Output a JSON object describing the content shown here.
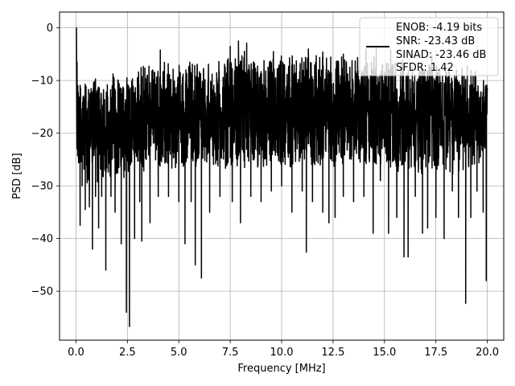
{
  "chart_data": {
    "type": "line",
    "title": "",
    "xlabel": "Frequency [MHz]",
    "ylabel": "PSD [dB]",
    "xlim": [
      -0.8,
      20.8
    ],
    "ylim": [
      -59.3,
      3.0
    ],
    "xticks": [
      0.0,
      2.5,
      5.0,
      7.5,
      10.0,
      12.5,
      15.0,
      17.5,
      20.0
    ],
    "xtick_labels": [
      "0.0",
      "2.5",
      "5.0",
      "7.5",
      "10.0",
      "12.5",
      "15.0",
      "17.5",
      "20.0"
    ],
    "yticks": [
      0,
      -10,
      -20,
      -30,
      -40,
      -50
    ],
    "ytick_labels": [
      "0",
      "−10",
      "−20",
      "−30",
      "−40",
      "−50"
    ],
    "grid": true,
    "legend_position": "top-right",
    "legend": {
      "lines": [
        "ENOB: -4.19 bits",
        "SNR: -23.43 dB",
        "SINAD: -23.46 dB",
        "SFDR: 1.42"
      ],
      "color": "#000000"
    },
    "series": [
      {
        "color": "#000000",
        "band_top": [
          [
            0.05,
            -9.5
          ],
          [
            0.5,
            -11
          ],
          [
            1.0,
            -10
          ],
          [
            1.5,
            -10
          ],
          [
            2.0,
            -9
          ],
          [
            2.5,
            -8.5
          ],
          [
            3.0,
            -8
          ],
          [
            4.0,
            -7.5
          ],
          [
            5.0,
            -7
          ],
          [
            6.0,
            -6.5
          ],
          [
            7.0,
            -6
          ],
          [
            7.5,
            -5.5
          ],
          [
            8.0,
            -4.5
          ],
          [
            9.0,
            -5.5
          ],
          [
            10.0,
            -6
          ],
          [
            11.0,
            -5.5
          ],
          [
            12.0,
            -5.5
          ],
          [
            13.0,
            -5.5
          ],
          [
            14.0,
            -6
          ],
          [
            15.0,
            -6
          ],
          [
            16.0,
            -7
          ],
          [
            17.0,
            -7
          ],
          [
            18.0,
            -8
          ],
          [
            19.0,
            -8
          ],
          [
            20.0,
            -9.5
          ]
        ],
        "band_bottom": [
          [
            0.05,
            -26
          ],
          [
            0.5,
            -29
          ],
          [
            1.0,
            -29
          ],
          [
            2.0,
            -28
          ],
          [
            3.0,
            -27
          ],
          [
            4.0,
            -26
          ],
          [
            5.0,
            -26
          ],
          [
            6.0,
            -26
          ],
          [
            7.0,
            -26
          ],
          [
            8.0,
            -26
          ],
          [
            9.0,
            -26
          ],
          [
            10.0,
            -26
          ],
          [
            11.0,
            -26
          ],
          [
            12.0,
            -26
          ],
          [
            13.0,
            -26
          ],
          [
            14.0,
            -26
          ],
          [
            15.0,
            -26
          ],
          [
            16.0,
            -27
          ],
          [
            17.0,
            -27
          ],
          [
            18.0,
            -27
          ],
          [
            19.0,
            -27
          ],
          [
            20.0,
            -24
          ]
        ],
        "spikes": [
          [
            0.02,
            -0.2
          ],
          [
            0.05,
            -6.5
          ],
          [
            0.1,
            -23
          ],
          [
            0.2,
            -37.5
          ],
          [
            0.3,
            -30
          ],
          [
            0.45,
            -34.5
          ],
          [
            0.65,
            -34
          ],
          [
            0.8,
            -42
          ],
          [
            0.95,
            -32
          ],
          [
            1.1,
            -38
          ],
          [
            1.25,
            -32
          ],
          [
            1.45,
            -46
          ],
          [
            1.7,
            -32
          ],
          [
            1.9,
            -35
          ],
          [
            2.2,
            -41
          ],
          [
            2.45,
            -54
          ],
          [
            2.6,
            -56.7
          ],
          [
            2.85,
            -40
          ],
          [
            3.1,
            -33
          ],
          [
            3.2,
            -40.5
          ],
          [
            3.6,
            -37
          ],
          [
            4.0,
            -32
          ],
          [
            4.5,
            -32
          ],
          [
            5.0,
            -33
          ],
          [
            5.3,
            -41
          ],
          [
            5.6,
            -33
          ],
          [
            5.8,
            -45
          ],
          [
            6.1,
            -47.5
          ],
          [
            6.5,
            -35
          ],
          [
            7.0,
            -32
          ],
          [
            7.6,
            -33
          ],
          [
            8.0,
            -37
          ],
          [
            8.5,
            -32
          ],
          [
            9.0,
            -33
          ],
          [
            9.5,
            -31
          ],
          [
            10.0,
            -30
          ],
          [
            10.5,
            -35
          ],
          [
            11.0,
            -31
          ],
          [
            11.2,
            -42.6
          ],
          [
            11.5,
            -33
          ],
          [
            12.0,
            -35
          ],
          [
            12.3,
            -37
          ],
          [
            12.6,
            -36
          ],
          [
            13.0,
            -32
          ],
          [
            13.5,
            -33
          ],
          [
            14.0,
            -32
          ],
          [
            14.45,
            -39
          ],
          [
            14.8,
            -29
          ],
          [
            15.2,
            -39
          ],
          [
            15.6,
            -36
          ],
          [
            15.95,
            -43.5
          ],
          [
            16.15,
            -43.5
          ],
          [
            16.5,
            -32
          ],
          [
            16.85,
            -39
          ],
          [
            17.1,
            -38
          ],
          [
            17.5,
            -36
          ],
          [
            17.9,
            -40
          ],
          [
            18.3,
            -31
          ],
          [
            18.6,
            -36
          ],
          [
            18.95,
            -52.3
          ],
          [
            19.2,
            -36
          ],
          [
            19.5,
            -31
          ],
          [
            19.8,
            -35
          ],
          [
            19.95,
            -48
          ]
        ],
        "peaks": [
          [
            0.02,
            0.0
          ],
          [
            4.1,
            -4.2
          ],
          [
            7.5,
            -3.5
          ],
          [
            7.9,
            -2.5
          ],
          [
            8.3,
            -2.9
          ],
          [
            9.6,
            -4.5
          ],
          [
            11.3,
            -4.0
          ],
          [
            12.0,
            -4.6
          ],
          [
            13.0,
            -5.0
          ],
          [
            14.1,
            -4.0
          ],
          [
            14.6,
            -3.6
          ],
          [
            15.3,
            -4.2
          ],
          [
            17.3,
            -5.3
          ]
        ]
      }
    ]
  }
}
